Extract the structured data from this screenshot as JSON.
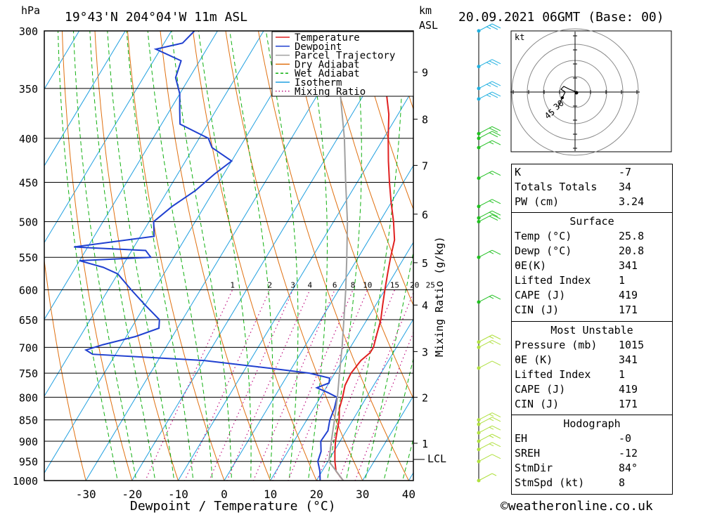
{
  "header": {
    "pressure_unit": "hPa",
    "location": "19°43'N  204°04'W  11m  ASL",
    "height_unit": "km",
    "height_ref": "ASL",
    "datetime": "20.09.2021  06GMT  (Base: 00)"
  },
  "axes": {
    "xlabel": "Dewpoint / Temperature (°C)",
    "x_ticks": [
      -30,
      -20,
      -10,
      0,
      10,
      20,
      30,
      40
    ],
    "x_tick_labels": [
      "-30",
      "-20",
      "-10",
      "0",
      "10",
      "20",
      "30",
      "40"
    ],
    "p_ticks": [
      300,
      350,
      400,
      450,
      500,
      550,
      600,
      650,
      700,
      750,
      800,
      850,
      900,
      950,
      1000
    ],
    "p_tick_labels": [
      "300",
      "350",
      "400",
      "450",
      "500",
      "550",
      "600",
      "650",
      "700",
      "750",
      "800",
      "850",
      "900",
      "950",
      "1000"
    ],
    "km_ticks": [
      {
        "label": "9",
        "p": 335
      },
      {
        "label": "8",
        "p": 380
      },
      {
        "label": "7",
        "p": 430
      },
      {
        "label": "6",
        "p": 490
      },
      {
        "label": "5",
        "p": 558
      },
      {
        "label": "4",
        "p": 625
      },
      {
        "label": "3",
        "p": 708
      },
      {
        "label": "2",
        "p": 800
      },
      {
        "label": "1",
        "p": 905
      }
    ],
    "lcl_label": "LCL",
    "lcl_p": 945,
    "mixing_ratio_axis_label": "Mixing Ratio (g/kg)",
    "mixing_ratio_labels": [
      "1",
      "2",
      "3",
      "4",
      "6",
      "8",
      "10",
      "15",
      "20",
      "25"
    ]
  },
  "legend": {
    "items": [
      {
        "label": "Temperature",
        "color": "#e02020",
        "style": "solid"
      },
      {
        "label": "Dewpoint",
        "color": "#2040d0",
        "style": "solid"
      },
      {
        "label": "Parcel Trajectory",
        "color": "#a0a0a0",
        "style": "solid"
      },
      {
        "label": "Dry Adiabat",
        "color": "#e07010",
        "style": "solid"
      },
      {
        "label": "Wet Adiabat",
        "color": "#10b010",
        "style": "dashed"
      },
      {
        "label": "Isotherm",
        "color": "#20a0e0",
        "style": "solid"
      },
      {
        "label": "Mixing Ratio",
        "color": "#c01080",
        "style": "dotted"
      }
    ]
  },
  "chart_data": {
    "type": "skew-t",
    "xlabel": "Dewpoint / Temperature (°C)",
    "ylabel": "hPa",
    "xlim": [
      -40,
      40
    ],
    "ylim": [
      1000,
      300
    ],
    "series": [
      {
        "name": "Temperature",
        "color": "#e02020",
        "points": [
          [
            1000,
            25.8
          ],
          [
            975,
            23
          ],
          [
            950,
            21.5
          ],
          [
            925,
            20.2
          ],
          [
            900,
            19
          ],
          [
            875,
            18
          ],
          [
            850,
            17
          ],
          [
            825,
            15.6
          ],
          [
            800,
            14.8
          ],
          [
            775,
            13.8
          ],
          [
            750,
            13.5
          ],
          [
            725,
            14
          ],
          [
            710,
            15
          ],
          [
            700,
            15
          ],
          [
            675,
            14
          ],
          [
            650,
            13
          ],
          [
            625,
            11.5
          ],
          [
            600,
            10
          ],
          [
            575,
            8.5
          ],
          [
            550,
            7
          ],
          [
            525,
            5.6
          ],
          [
            500,
            3
          ],
          [
            475,
            0
          ],
          [
            450,
            -3
          ],
          [
            425,
            -6
          ],
          [
            400,
            -9
          ],
          [
            375,
            -12
          ],
          [
            350,
            -16
          ],
          [
            325,
            -20
          ],
          [
            300,
            -25
          ]
        ]
      },
      {
        "name": "Dewpoint",
        "color": "#2040d0",
        "points": [
          [
            1000,
            20.8
          ],
          [
            975,
            19.5
          ],
          [
            950,
            17.8
          ],
          [
            925,
            17.2
          ],
          [
            900,
            15.8
          ],
          [
            875,
            16
          ],
          [
            850,
            15
          ],
          [
            825,
            14.5
          ],
          [
            800,
            13.6
          ],
          [
            790,
            11
          ],
          [
            780,
            8
          ],
          [
            770,
            10
          ],
          [
            760,
            9.5
          ],
          [
            750,
            4.5
          ],
          [
            740,
            -5
          ],
          [
            725,
            -20
          ],
          [
            713,
            -45
          ],
          [
            705,
            -47
          ],
          [
            695,
            -44
          ],
          [
            680,
            -38
          ],
          [
            665,
            -34
          ],
          [
            650,
            -35
          ],
          [
            625,
            -40
          ],
          [
            600,
            -45
          ],
          [
            575,
            -50
          ],
          [
            565,
            -54
          ],
          [
            555,
            -60
          ],
          [
            550,
            -45
          ],
          [
            540,
            -47
          ],
          [
            535,
            -63
          ],
          [
            520,
            -47
          ],
          [
            500,
            -49
          ],
          [
            480,
            -47
          ],
          [
            460,
            -44
          ],
          [
            440,
            -42
          ],
          [
            425,
            -40
          ],
          [
            410,
            -46
          ],
          [
            400,
            -48
          ],
          [
            385,
            -56
          ],
          [
            370,
            -58
          ],
          [
            355,
            -60
          ],
          [
            340,
            -63
          ],
          [
            325,
            -64
          ],
          [
            315,
            -71
          ],
          [
            310,
            -66
          ],
          [
            300,
            -65
          ]
        ]
      },
      {
        "name": "Parcel Trajectory",
        "color": "#a0a0a0",
        "points": [
          [
            1000,
            25.8
          ],
          [
            950,
            20.2
          ],
          [
            900,
            18.1
          ],
          [
            850,
            16
          ],
          [
            800,
            13.7
          ],
          [
            750,
            11
          ],
          [
            700,
            8.2
          ],
          [
            650,
            5
          ],
          [
            600,
            1.5
          ],
          [
            550,
            -2.5
          ],
          [
            500,
            -7
          ],
          [
            450,
            -12.5
          ],
          [
            400,
            -18.5
          ],
          [
            350,
            -26
          ],
          [
            300,
            -35
          ]
        ]
      }
    ],
    "wind_barbs": [
      {
        "p": 300,
        "kt": 25
      },
      {
        "p": 330,
        "kt": 25
      },
      {
        "p": 350,
        "kt": 25
      },
      {
        "p": 360,
        "kt": 25
      },
      {
        "p": 395,
        "kt": 20
      },
      {
        "p": 400,
        "kt": 20
      },
      {
        "p": 410,
        "kt": 15
      },
      {
        "p": 445,
        "kt": 15
      },
      {
        "p": 480,
        "kt": 15
      },
      {
        "p": 495,
        "kt": 20
      },
      {
        "p": 500,
        "kt": 20
      },
      {
        "p": 550,
        "kt": 15
      },
      {
        "p": 620,
        "kt": 15
      },
      {
        "p": 690,
        "kt": 15
      },
      {
        "p": 700,
        "kt": 15
      },
      {
        "p": 740,
        "kt": 10
      },
      {
        "p": 850,
        "kt": 15
      },
      {
        "p": 860,
        "kt": 15
      },
      {
        "p": 880,
        "kt": 15
      },
      {
        "p": 900,
        "kt": 15
      },
      {
        "p": 920,
        "kt": 15
      },
      {
        "p": 950,
        "kt": 10
      },
      {
        "p": 1000,
        "kt": 5
      }
    ]
  },
  "hodograph": {
    "unit": "kt",
    "ring_labels": [
      "30",
      "45"
    ]
  },
  "indices": {
    "general": [
      {
        "label": "K",
        "value": "-7"
      },
      {
        "label": "Totals Totals",
        "value": "34"
      },
      {
        "label": "PW (cm)",
        "value": "3.24"
      }
    ],
    "surface_title": "Surface",
    "surface": [
      {
        "label": "Temp (°C)",
        "value": "25.8"
      },
      {
        "label": "Dewp (°C)",
        "value": "20.8"
      },
      {
        "label": "θE(K)",
        "value": "341"
      },
      {
        "label": "Lifted Index",
        "value": "1"
      },
      {
        "label": "CAPE (J)",
        "value": "419"
      },
      {
        "label": "CIN (J)",
        "value": "171"
      }
    ],
    "mu_title": "Most Unstable",
    "mu": [
      {
        "label": "Pressure (mb)",
        "value": "1015"
      },
      {
        "label": "θE (K)",
        "value": "341"
      },
      {
        "label": "Lifted Index",
        "value": "1"
      },
      {
        "label": "CAPE (J)",
        "value": "419"
      },
      {
        "label": "CIN (J)",
        "value": "171"
      }
    ],
    "hodo_title": "Hodograph",
    "hodo": [
      {
        "label": "EH",
        "value": "-0"
      },
      {
        "label": "SREH",
        "value": "-12"
      },
      {
        "label": "StmDir",
        "value": "84°"
      },
      {
        "label": "StmSpd (kt)",
        "value": "8"
      }
    ]
  },
  "credit": "©weatheronline.co.uk"
}
